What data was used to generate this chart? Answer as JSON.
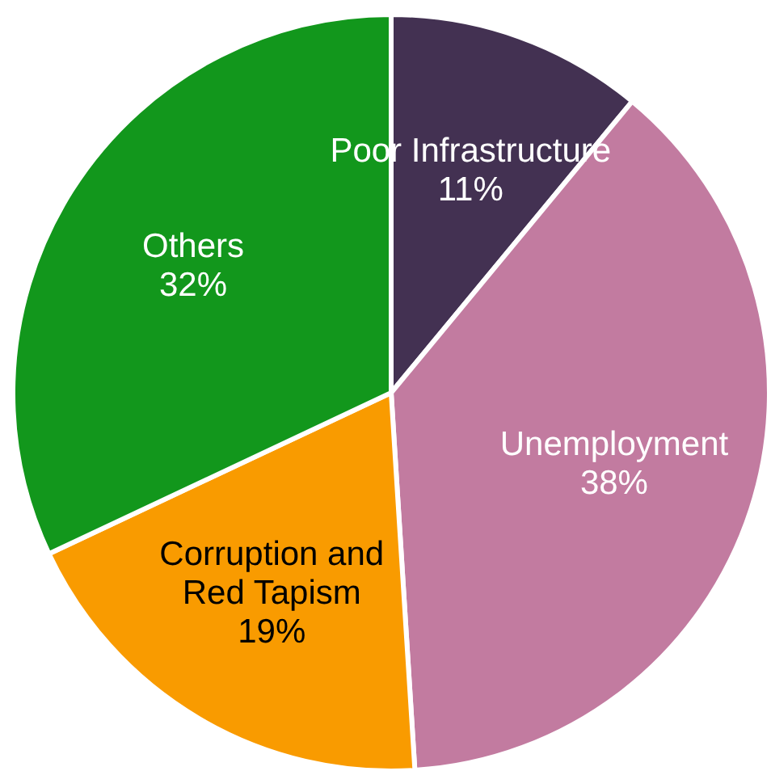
{
  "chart_data": {
    "type": "pie",
    "categories": [
      "Poor Infrastructure",
      "Unemployment",
      "Corruption and\nRed Tapism",
      "Others"
    ],
    "values": [
      11,
      38,
      19,
      32
    ],
    "colors": [
      "#433152",
      "#c27ba0",
      "#f99b00",
      "#12971c"
    ],
    "value_labels": [
      "11%",
      "38%",
      "19%",
      "32%"
    ]
  }
}
